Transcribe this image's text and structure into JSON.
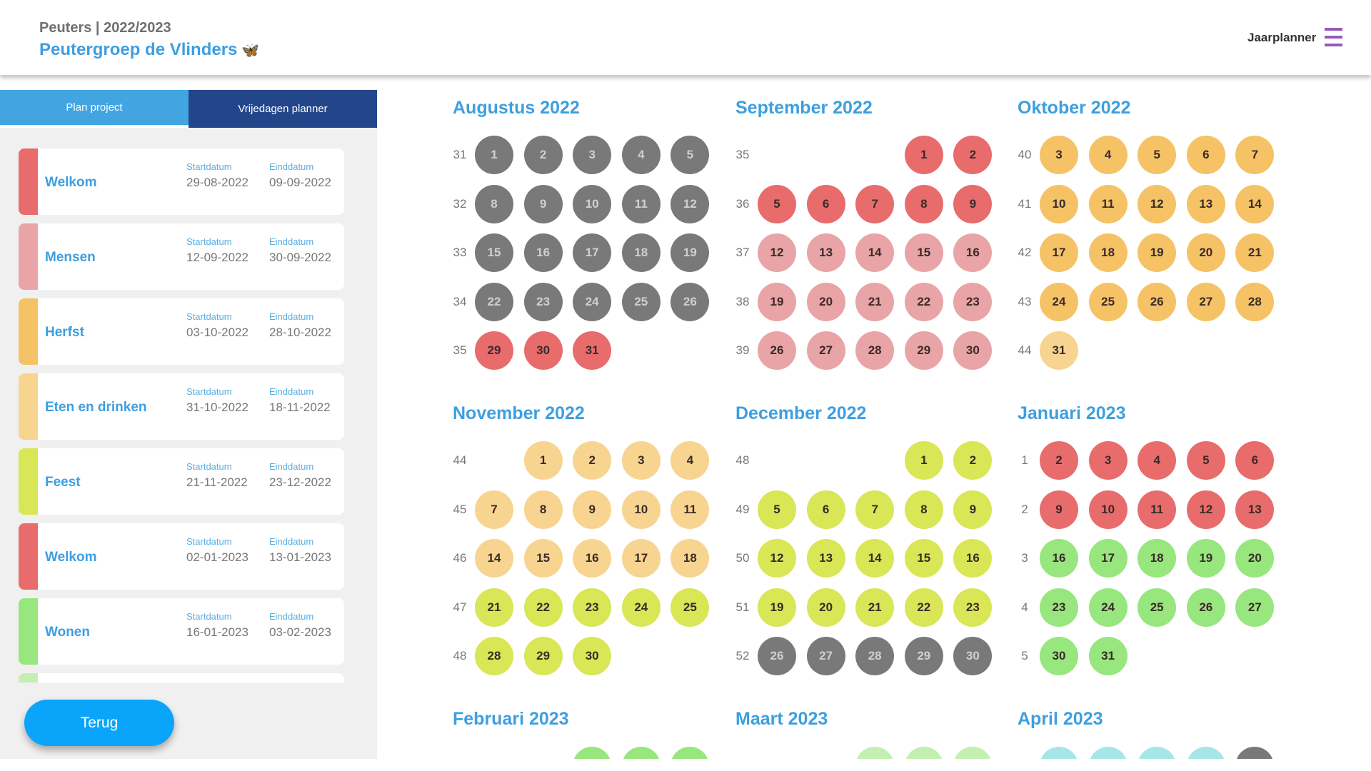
{
  "header": {
    "subtitle": "Peuters | 2022/2023",
    "title": "Peutergroep de Vlinders",
    "emoji": "🦋",
    "nav_label": "Jaarplanner",
    "menu_icon": "hamburger-icon"
  },
  "tabs": [
    {
      "label": "Plan project"
    },
    {
      "label": "Vrijedagen planner"
    }
  ],
  "projects": [
    {
      "name": "Welkom",
      "start_label": "Startdatum",
      "start": "29-08-2022",
      "end_label": "Einddatum",
      "end": "09-09-2022",
      "color": "#e86c6c"
    },
    {
      "name": "Mensen",
      "start_label": "Startdatum",
      "start": "12-09-2022",
      "end_label": "Einddatum",
      "end": "30-09-2022",
      "color": "#e8a4a6"
    },
    {
      "name": "Herfst",
      "start_label": "Startdatum",
      "start": "03-10-2022",
      "end_label": "Einddatum",
      "end": "28-10-2022",
      "color": "#f5c266"
    },
    {
      "name": "Eten en drinken",
      "start_label": "Startdatum",
      "start": "31-10-2022",
      "end_label": "Einddatum",
      "end": "18-11-2022",
      "color": "#f8d491"
    },
    {
      "name": "Feest",
      "start_label": "Startdatum",
      "start": "21-11-2022",
      "end_label": "Einddatum",
      "end": "23-12-2022",
      "color": "#d9e655"
    },
    {
      "name": "Welkom",
      "start_label": "Startdatum",
      "start": "02-01-2023",
      "end_label": "Einddatum",
      "end": "13-01-2023",
      "color": "#e86c6c"
    },
    {
      "name": "Wonen",
      "start_label": "Startdatum",
      "start": "16-01-2023",
      "end_label": "Einddatum",
      "end": "03-02-2023",
      "color": "#98e67e"
    },
    {
      "name": "",
      "start_label": "",
      "start": "",
      "end_label": "",
      "end": "",
      "color": "#c3f0b0"
    }
  ],
  "back_button": "Terug",
  "palette": {
    "gray": "#797979",
    "red": "#e86c6c",
    "pink": "#e8a4a6",
    "orange": "#f5c266",
    "lorange": "#f8d491",
    "yg": "#d9e655",
    "green": "#98e67e",
    "lgreen": "#c3f0b0",
    "cyan": "#a6e6e8"
  },
  "months": [
    {
      "title": "Augustus 2022",
      "weeks": [
        {
          "wk": "31",
          "start": 0,
          "days": [
            "1",
            "2",
            "3",
            "4",
            "5"
          ],
          "colors": [
            "gray",
            "gray",
            "gray",
            "gray",
            "gray"
          ]
        },
        {
          "wk": "32",
          "start": 0,
          "days": [
            "8",
            "9",
            "10",
            "11",
            "12"
          ],
          "colors": [
            "gray",
            "gray",
            "gray",
            "gray",
            "gray"
          ]
        },
        {
          "wk": "33",
          "start": 0,
          "days": [
            "15",
            "16",
            "17",
            "18",
            "19"
          ],
          "colors": [
            "gray",
            "gray",
            "gray",
            "gray",
            "gray"
          ]
        },
        {
          "wk": "34",
          "start": 0,
          "days": [
            "22",
            "23",
            "24",
            "25",
            "26"
          ],
          "colors": [
            "gray",
            "gray",
            "gray",
            "gray",
            "gray"
          ]
        },
        {
          "wk": "35",
          "start": 0,
          "days": [
            "29",
            "30",
            "31"
          ],
          "colors": [
            "red",
            "red",
            "red"
          ]
        }
      ]
    },
    {
      "title": "September 2022",
      "weeks": [
        {
          "wk": "35",
          "start": 3,
          "days": [
            "1",
            "2"
          ],
          "colors": [
            "red",
            "red"
          ]
        },
        {
          "wk": "36",
          "start": 0,
          "days": [
            "5",
            "6",
            "7",
            "8",
            "9"
          ],
          "colors": [
            "red",
            "red",
            "red",
            "red",
            "red"
          ]
        },
        {
          "wk": "37",
          "start": 0,
          "days": [
            "12",
            "13",
            "14",
            "15",
            "16"
          ],
          "colors": [
            "pink",
            "pink",
            "pink",
            "pink",
            "pink"
          ]
        },
        {
          "wk": "38",
          "start": 0,
          "days": [
            "19",
            "20",
            "21",
            "22",
            "23"
          ],
          "colors": [
            "pink",
            "pink",
            "pink",
            "pink",
            "pink"
          ]
        },
        {
          "wk": "39",
          "start": 0,
          "days": [
            "26",
            "27",
            "28",
            "29",
            "30"
          ],
          "colors": [
            "pink",
            "pink",
            "pink",
            "pink",
            "pink"
          ]
        }
      ]
    },
    {
      "title": "Oktober 2022",
      "weeks": [
        {
          "wk": "40",
          "start": 0,
          "days": [
            "3",
            "4",
            "5",
            "6",
            "7"
          ],
          "colors": [
            "orange",
            "orange",
            "orange",
            "orange",
            "orange"
          ]
        },
        {
          "wk": "41",
          "start": 0,
          "days": [
            "10",
            "11",
            "12",
            "13",
            "14"
          ],
          "colors": [
            "orange",
            "orange",
            "orange",
            "orange",
            "orange"
          ]
        },
        {
          "wk": "42",
          "start": 0,
          "days": [
            "17",
            "18",
            "19",
            "20",
            "21"
          ],
          "colors": [
            "orange",
            "orange",
            "orange",
            "orange",
            "orange"
          ]
        },
        {
          "wk": "43",
          "start": 0,
          "days": [
            "24",
            "25",
            "26",
            "27",
            "28"
          ],
          "colors": [
            "orange",
            "orange",
            "orange",
            "orange",
            "orange"
          ]
        },
        {
          "wk": "44",
          "start": 0,
          "days": [
            "31"
          ],
          "colors": [
            "lorange"
          ]
        }
      ]
    },
    {
      "title": "November 2022",
      "weeks": [
        {
          "wk": "44",
          "start": 1,
          "days": [
            "1",
            "2",
            "3",
            "4"
          ],
          "colors": [
            "lorange",
            "lorange",
            "lorange",
            "lorange"
          ]
        },
        {
          "wk": "45",
          "start": 0,
          "days": [
            "7",
            "8",
            "9",
            "10",
            "11"
          ],
          "colors": [
            "lorange",
            "lorange",
            "lorange",
            "lorange",
            "lorange"
          ]
        },
        {
          "wk": "46",
          "start": 0,
          "days": [
            "14",
            "15",
            "16",
            "17",
            "18"
          ],
          "colors": [
            "lorange",
            "lorange",
            "lorange",
            "lorange",
            "lorange"
          ]
        },
        {
          "wk": "47",
          "start": 0,
          "days": [
            "21",
            "22",
            "23",
            "24",
            "25"
          ],
          "colors": [
            "yg",
            "yg",
            "yg",
            "yg",
            "yg"
          ]
        },
        {
          "wk": "48",
          "start": 0,
          "days": [
            "28",
            "29",
            "30"
          ],
          "colors": [
            "yg",
            "yg",
            "yg"
          ]
        }
      ]
    },
    {
      "title": "December 2022",
      "weeks": [
        {
          "wk": "48",
          "start": 3,
          "days": [
            "1",
            "2"
          ],
          "colors": [
            "yg",
            "yg"
          ]
        },
        {
          "wk": "49",
          "start": 0,
          "days": [
            "5",
            "6",
            "7",
            "8",
            "9"
          ],
          "colors": [
            "yg",
            "yg",
            "yg",
            "yg",
            "yg"
          ]
        },
        {
          "wk": "50",
          "start": 0,
          "days": [
            "12",
            "13",
            "14",
            "15",
            "16"
          ],
          "colors": [
            "yg",
            "yg",
            "yg",
            "yg",
            "yg"
          ]
        },
        {
          "wk": "51",
          "start": 0,
          "days": [
            "19",
            "20",
            "21",
            "22",
            "23"
          ],
          "colors": [
            "yg",
            "yg",
            "yg",
            "yg",
            "yg"
          ]
        },
        {
          "wk": "52",
          "start": 0,
          "days": [
            "26",
            "27",
            "28",
            "29",
            "30"
          ],
          "colors": [
            "gray",
            "gray",
            "gray",
            "gray",
            "gray"
          ]
        }
      ]
    },
    {
      "title": "Januari 2023",
      "weeks": [
        {
          "wk": "1",
          "start": 0,
          "days": [
            "2",
            "3",
            "4",
            "5",
            "6"
          ],
          "colors": [
            "red",
            "red",
            "red",
            "red",
            "red"
          ]
        },
        {
          "wk": "2",
          "start": 0,
          "days": [
            "9",
            "10",
            "11",
            "12",
            "13"
          ],
          "colors": [
            "red",
            "red",
            "red",
            "red",
            "red"
          ]
        },
        {
          "wk": "3",
          "start": 0,
          "days": [
            "16",
            "17",
            "18",
            "19",
            "20"
          ],
          "colors": [
            "green",
            "green",
            "green",
            "green",
            "green"
          ]
        },
        {
          "wk": "4",
          "start": 0,
          "days": [
            "23",
            "24",
            "25",
            "26",
            "27"
          ],
          "colors": [
            "green",
            "green",
            "green",
            "green",
            "green"
          ]
        },
        {
          "wk": "5",
          "start": 0,
          "days": [
            "30",
            "31"
          ],
          "colors": [
            "green",
            "green"
          ]
        }
      ]
    },
    {
      "title": "Februari 2023",
      "weeks": [
        {
          "wk": "",
          "start": 2,
          "days": [
            "",
            "",
            ""
          ],
          "colors": [
            "green",
            "green",
            "green"
          ]
        }
      ]
    },
    {
      "title": "Maart 2023",
      "weeks": [
        {
          "wk": "",
          "start": 2,
          "days": [
            "",
            "",
            ""
          ],
          "colors": [
            "lgreen",
            "lgreen",
            "lgreen"
          ]
        }
      ]
    },
    {
      "title": "April 2023",
      "weeks": [
        {
          "wk": "",
          "start": 0,
          "days": [
            "",
            "",
            "",
            "",
            ""
          ],
          "colors": [
            "cyan",
            "cyan",
            "cyan",
            "cyan",
            "gray"
          ]
        }
      ]
    }
  ]
}
